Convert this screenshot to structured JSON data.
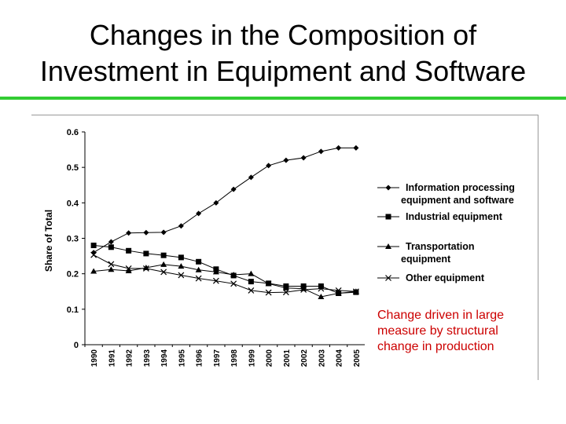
{
  "title_line1": "Changes in the Composition of",
  "title_line2": "Investment in Equipment and Software",
  "accent_color": "#33cc33",
  "note_lines": [
    "Change driven in large",
    "measure by structural",
    "change in production"
  ],
  "note_color": "#cc0000",
  "chart_data": {
    "type": "line",
    "ylabel": "Share of Total",
    "xlabel": "",
    "ylim": [
      0,
      0.6
    ],
    "yticks": [
      "0",
      "0.1",
      "0.2",
      "0.3",
      "0.4",
      "0.5",
      "0.6"
    ],
    "grid": false,
    "legend_position": "right",
    "x": [
      "1990",
      "1991",
      "1992",
      "1993",
      "1994",
      "1995",
      "1996",
      "1997",
      "1998",
      "1999",
      "2000",
      "2001",
      "2002",
      "2003",
      "2004",
      "2005"
    ],
    "series": [
      {
        "name_lines": [
          "Information processing",
          "equipment and software"
        ],
        "marker": "diamond",
        "values": [
          0.26,
          0.29,
          0.315,
          0.316,
          0.317,
          0.335,
          0.37,
          0.4,
          0.438,
          0.472,
          0.505,
          0.52,
          0.527,
          0.545,
          0.555,
          0.555
        ]
      },
      {
        "name_lines": [
          "Industrial equipment"
        ],
        "marker": "square",
        "values": [
          0.28,
          0.275,
          0.265,
          0.257,
          0.252,
          0.246,
          0.234,
          0.213,
          0.195,
          0.178,
          0.173,
          0.165,
          0.165,
          0.165,
          0.145,
          0.148
        ]
      },
      {
        "name_lines": [
          "Transportation",
          "equipment"
        ],
        "marker": "triangle",
        "values": [
          0.207,
          0.212,
          0.208,
          0.217,
          0.226,
          0.221,
          0.211,
          0.205,
          0.197,
          0.2,
          0.172,
          0.16,
          0.158,
          0.135,
          0.145,
          0.15
        ]
      },
      {
        "name_lines": [
          "Other equipment"
        ],
        "marker": "x",
        "values": [
          0.253,
          0.227,
          0.215,
          0.215,
          0.205,
          0.196,
          0.187,
          0.18,
          0.172,
          0.153,
          0.147,
          0.148,
          0.155,
          0.158,
          0.153,
          0.15
        ]
      }
    ]
  }
}
